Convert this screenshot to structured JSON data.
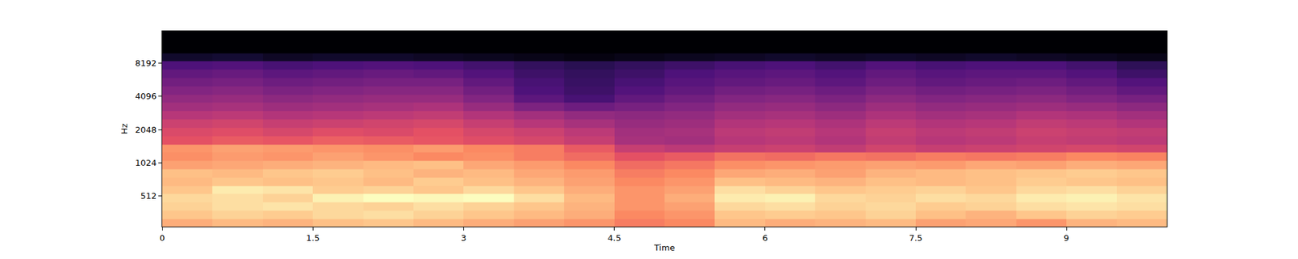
{
  "chart_data": {
    "type": "heatmap",
    "x_label": "Time",
    "y_label": "Hz",
    "log": "y",
    "grid": false,
    "xlim": [
      0,
      10
    ],
    "xticks": [
      0,
      1.5,
      3,
      4.5,
      6,
      7.5,
      9
    ],
    "ylim": [
      270,
      16000
    ],
    "yticks": [
      512,
      1024,
      2048,
      4096,
      8192
    ],
    "x": [
      0.25,
      0.75,
      1.25,
      1.75,
      2.25,
      2.75,
      3.25,
      3.75,
      4.25,
      4.75,
      5.25,
      5.75,
      6.25,
      6.75,
      7.25,
      7.75,
      8.25,
      8.75,
      9.25,
      9.75
    ],
    "y": [
      290,
      345,
      410,
      488,
      580,
      690,
      820,
      975,
      1160,
      1380,
      1640,
      1950,
      2320,
      2760,
      3280,
      3900,
      4640,
      5520,
      6560,
      7800,
      9280,
      11000,
      13100,
      15600
    ],
    "z": [
      [
        -16,
        -14,
        -15,
        -13,
        -12,
        -14,
        -16,
        -18,
        -20,
        -24,
        -22,
        -14,
        -16,
        -15,
        -14,
        -18,
        -17,
        -20,
        -15,
        -14
      ],
      [
        -12,
        -10,
        -11,
        -9,
        -8,
        -10,
        -12,
        -14,
        -16,
        -22,
        -20,
        -12,
        -11,
        -12,
        -10,
        -13,
        -15,
        -12,
        -10,
        -11
      ],
      [
        -10,
        -8,
        -7,
        -9,
        -10,
        -8,
        -10,
        -12,
        -15,
        -20,
        -18,
        -9,
        -8,
        -10,
        -9,
        -11,
        -10,
        -8,
        -7,
        -8
      ],
      [
        -9,
        -8,
        -10,
        -5,
        -3,
        -4,
        -3,
        -8,
        -14,
        -20,
        -16,
        -6,
        -5,
        -9,
        -10,
        -8,
        -9,
        -6,
        -5,
        -7
      ],
      [
        -12,
        -6,
        -7,
        -11,
        -10,
        -12,
        -9,
        -12,
        -16,
        -20,
        -18,
        -8,
        -10,
        -12,
        -11,
        -10,
        -12,
        -9,
        -8,
        -10
      ],
      [
        -14,
        -12,
        -13,
        -12,
        -14,
        -11,
        -13,
        -15,
        -18,
        -22,
        -20,
        -13,
        -14,
        -15,
        -13,
        -14,
        -13,
        -11,
        -12,
        -13
      ],
      [
        -13,
        -14,
        -12,
        -11,
        -13,
        -15,
        -14,
        -17,
        -19,
        -24,
        -22,
        -17,
        -16,
        -18,
        -15,
        -14,
        -13,
        -12,
        -11,
        -12
      ],
      [
        -18,
        -17,
        -16,
        -15,
        -14,
        -13,
        -17,
        -19,
        -22,
        -27,
        -25,
        -21,
        -20,
        -19,
        -18,
        -19,
        -17,
        -18,
        -16,
        -17
      ],
      [
        -21,
        -19,
        -20,
        -18,
        -20,
        -22,
        -21,
        -24,
        -27,
        -32,
        -30,
        -26,
        -27,
        -25,
        -26,
        -24,
        -25,
        -24,
        -22,
        -23
      ],
      [
        -20,
        -18,
        -19,
        -20,
        -21,
        -19,
        -22,
        -24,
        -30,
        -38,
        -40,
        -38,
        -37,
        -39,
        -36,
        -38,
        -37,
        -36,
        -35,
        -36
      ],
      [
        -32,
        -30,
        -31,
        -29,
        -30,
        -31,
        -33,
        -35,
        -38,
        -44,
        -45,
        -41,
        -40,
        -42,
        -39,
        -41,
        -40,
        -38,
        -39,
        -40
      ],
      [
        -34,
        -33,
        -35,
        -33,
        -34,
        -32,
        -35,
        -37,
        -40,
        -45,
        -44,
        -40,
        -39,
        -41,
        -38,
        -40,
        -39,
        -37,
        -38,
        -39
      ],
      [
        -37,
        -36,
        -38,
        -37,
        -36,
        -35,
        -38,
        -41,
        -44,
        -47,
        -46,
        -42,
        -41,
        -43,
        -40,
        -42,
        -41,
        -39,
        -40,
        -42
      ],
      [
        -41,
        -40,
        -42,
        -41,
        -40,
        -39,
        -42,
        -45,
        -48,
        -49,
        -48,
        -45,
        -44,
        -46,
        -43,
        -45,
        -44,
        -42,
        -43,
        -45
      ],
      [
        -45,
        -44,
        -46,
        -45,
        -44,
        -43,
        -47,
        -52,
        -55,
        -53,
        -51,
        -48,
        -47,
        -49,
        -46,
        -48,
        -47,
        -46,
        -47,
        -49
      ],
      [
        -48,
        -47,
        -49,
        -48,
        -47,
        -47,
        -51,
        -58,
        -62,
        -57,
        -54,
        -51,
        -50,
        -52,
        -49,
        -51,
        -50,
        -49,
        -51,
        -53
      ],
      [
        -51,
        -50,
        -52,
        -51,
        -50,
        -50,
        -54,
        -61,
        -64,
        -60,
        -57,
        -54,
        -53,
        -55,
        -52,
        -54,
        -53,
        -52,
        -54,
        -57
      ],
      [
        -54,
        -53,
        -55,
        -54,
        -53,
        -53,
        -57,
        -62,
        -65,
        -62,
        -59,
        -57,
        -56,
        -58,
        -55,
        -57,
        -56,
        -55,
        -57,
        -60
      ],
      [
        -57,
        -56,
        -58,
        -57,
        -56,
        -57,
        -60,
        -64,
        -66,
        -64,
        -61,
        -59,
        -58,
        -60,
        -57,
        -59,
        -58,
        -58,
        -60,
        -64
      ],
      [
        -61,
        -60,
        -62,
        -61,
        -60,
        -61,
        -63,
        -66,
        -68,
        -66,
        -64,
        -62,
        -61,
        -63,
        -60,
        -62,
        -61,
        -61,
        -63,
        -67
      ],
      [
        -74,
        -73,
        -75,
        -74,
        -74,
        -75,
        -76,
        -77,
        -78,
        -77,
        -76,
        -75,
        -74,
        -75,
        -74,
        -75,
        -74,
        -75,
        -76,
        -77
      ],
      [
        -80,
        -80,
        -80,
        -80,
        -80,
        -80,
        -80,
        -80,
        -80,
        -80,
        -80,
        -80,
        -80,
        -80,
        -80,
        -80,
        -80,
        -80,
        -80,
        -80
      ],
      [
        -80,
        -80,
        -80,
        -80,
        -80,
        -80,
        -80,
        -80,
        -80,
        -80,
        -80,
        -80,
        -80,
        -80,
        -80,
        -80,
        -80,
        -80,
        -80,
        -80
      ],
      [
        -80,
        -80,
        -80,
        -80,
        -80,
        -80,
        -80,
        -80,
        -80,
        -80,
        -80,
        -80,
        -80,
        -80,
        -80,
        -80,
        -80,
        -80,
        -80,
        -80
      ]
    ]
  }
}
